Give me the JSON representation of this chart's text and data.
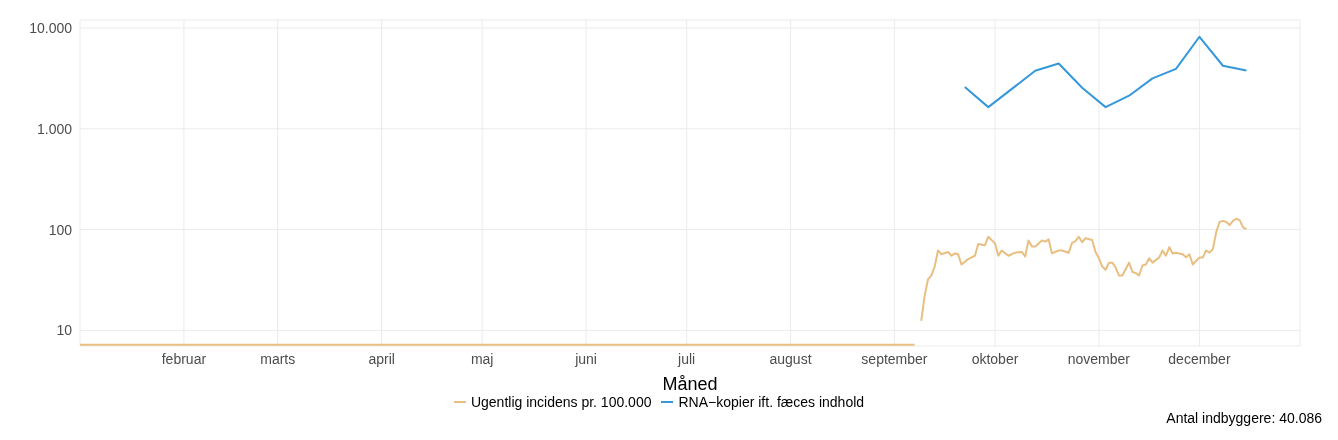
{
  "chart_data": {
    "type": "line",
    "xlabel": "Måned",
    "annotations": [
      "Antal indbyggere: 40.086"
    ],
    "log": "y",
    "grid": true,
    "legend": "bottom",
    "xlim": [
      "--01-01",
      "--12-31"
    ],
    "xticks": [
      {
        "value": "--02-01",
        "label": "februar"
      },
      {
        "value": "--03-01",
        "label": "marts"
      },
      {
        "value": "--04-01",
        "label": "april"
      },
      {
        "value": "--05-01",
        "label": "maj"
      },
      {
        "value": "--06-01",
        "label": "juni"
      },
      {
        "value": "--07-01",
        "label": "juli"
      },
      {
        "value": "--08-01",
        "label": "august"
      },
      {
        "value": "--09-01",
        "label": "september"
      },
      {
        "value": "--10-01",
        "label": "oktober"
      },
      {
        "value": "--11-01",
        "label": "november"
      },
      {
        "value": "--12-01",
        "label": "december"
      }
    ],
    "ylim": [
      7,
      12000
    ],
    "yticks": [
      10,
      100,
      {
        "value": 1000,
        "label": "1.000"
      },
      {
        "value": 10000,
        "label": "10.000"
      }
    ],
    "series": [
      {
        "name": "Ugentlig incidens pr. 100.000",
        "color": "#e8bf80",
        "x": [
          "--01-01",
          "--01-15",
          "--02-01",
          "--02-15",
          "--03-01",
          "--03-15",
          "--04-01",
          "--04-15",
          "--05-01",
          "--05-15",
          "--06-01",
          "--06-15",
          "--07-01",
          "--07-15",
          "--08-01",
          "--08-15",
          "--09-01",
          "--09-07",
          "--09-08",
          "--09-09",
          "--09-10",
          "--09-11",
          "--09-12",
          "--09-13",
          "--09-14",
          "--09-15",
          "--09-17",
          "--09-18",
          "--09-19",
          "--09-20",
          "--09-21",
          "--09-23",
          "--09-24",
          "--09-25",
          "--09-26",
          "--09-28",
          "--09-29",
          "--10-01",
          "--10-02",
          "--10-03",
          "--10-05",
          "--10-07",
          "--10-09",
          "--10-10",
          "--10-11",
          "--10-12",
          "--10-13",
          "--10-15",
          "--10-16",
          "--10-17",
          "--10-18",
          "--10-20",
          "--10-21",
          "--10-23",
          "--10-24",
          "--10-25",
          "--10-26",
          "--10-27",
          "--10-28",
          "--10-30",
          "--10-31",
          "--11-01",
          "--11-02",
          "--11-03",
          "--11-04",
          "--11-05",
          "--11-06",
          "--11-07",
          "--11-08",
          "--11-10",
          "--11-11",
          "--11-12",
          "--11-13",
          "--11-14",
          "--11-15",
          "--11-16",
          "--11-17",
          "--11-19",
          "--11-20",
          "--11-21",
          "--11-22",
          "--11-23",
          "--11-24",
          "--11-26",
          "--11-27",
          "--11-28",
          "--11-29",
          "--12-01",
          "--12-02",
          "--12-03",
          "--12-04",
          "--12-05",
          "--12-06",
          "--12-07",
          "--12-08",
          "--12-09",
          "--12-10",
          "--12-11",
          "--12-12",
          "--12-13",
          "--12-14",
          "--12-15"
        ],
        "values": [
          7.2,
          7.2,
          7.2,
          7.2,
          7.2,
          7.2,
          7.2,
          7.2,
          7.2,
          7.2,
          7.2,
          7.2,
          7.2,
          7.2,
          7.2,
          7.2,
          7.2,
          7.2,
          null,
          12.4,
          22,
          32,
          35,
          43,
          62,
          57,
          60,
          55,
          58,
          57,
          45,
          51,
          53,
          55,
          72,
          70,
          85,
          73,
          55,
          62,
          55,
          59,
          60,
          54,
          78,
          68,
          68,
          78,
          76,
          80,
          58,
          62,
          62,
          59,
          74,
          77,
          85,
          75,
          82,
          79,
          60,
          52,
          43,
          40,
          47,
          47,
          42,
          35,
          35,
          47,
          38,
          37,
          35,
          44,
          45,
          52,
          47,
          53,
          62,
          55,
          67,
          58,
          59,
          57,
          53,
          57,
          45,
          53,
          53,
          62,
          59,
          64,
          94,
          119,
          122,
          119,
          111,
          122,
          128,
          124,
          105,
          101
        ]
      },
      {
        "name": "RNA−kopier ift. fæces indhold",
        "color": "#3498db",
        "x": [
          "--09-22",
          "--09-29",
          "--10-13",
          "--10-20",
          "--10-27",
          "--11-03",
          "--11-10",
          "--11-17",
          "--11-24",
          "--12-01",
          "--12-08",
          "--12-15"
        ],
        "values": [
          2600,
          1640,
          3760,
          4440,
          2550,
          1640,
          2130,
          3160,
          3930,
          8180,
          4220,
          3790
        ]
      }
    ]
  }
}
